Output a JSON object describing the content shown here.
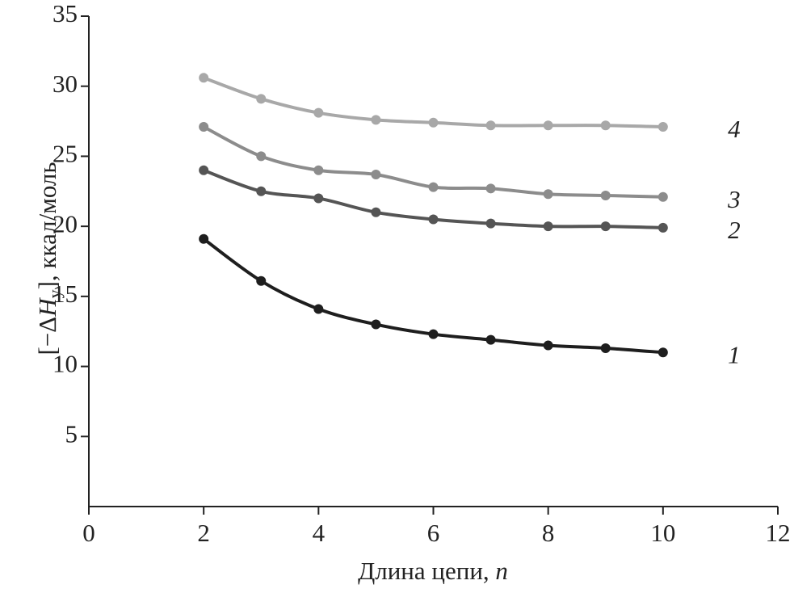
{
  "chart_data": {
    "type": "line",
    "x_label": {
      "text": "Длина цепи,",
      "symbol": "n"
    },
    "y_label": {
      "prefix": "[−Δ",
      "symbol": "H",
      "subscript": "у",
      "suffix": "], ккал/моль"
    },
    "x": [
      2,
      3,
      4,
      5,
      6,
      7,
      8,
      9,
      10
    ],
    "series": [
      {
        "name": "1",
        "color": "#1e1e1e",
        "values": [
          19.1,
          16.1,
          14.1,
          13.0,
          12.3,
          11.9,
          11.5,
          11.3,
          11.0
        ]
      },
      {
        "name": "2",
        "color": "#555555",
        "values": [
          24.0,
          22.5,
          22.0,
          21.0,
          20.5,
          20.2,
          20.0,
          20.0,
          19.9
        ]
      },
      {
        "name": "3",
        "color": "#8c8c8c",
        "values": [
          27.1,
          25.0,
          24.0,
          23.7,
          22.8,
          22.7,
          22.3,
          22.2,
          22.1
        ]
      },
      {
        "name": "4",
        "color": "#a8a8a8",
        "values": [
          30.6,
          29.1,
          28.1,
          27.6,
          27.4,
          27.2,
          27.2,
          27.2,
          27.1
        ]
      }
    ],
    "xlim": [
      0,
      12
    ],
    "xticks": [
      0,
      2,
      4,
      6,
      8,
      10,
      12
    ],
    "ylim": [
      0,
      35
    ],
    "yticks": [
      5,
      10,
      15,
      20,
      25,
      30,
      35
    ]
  }
}
